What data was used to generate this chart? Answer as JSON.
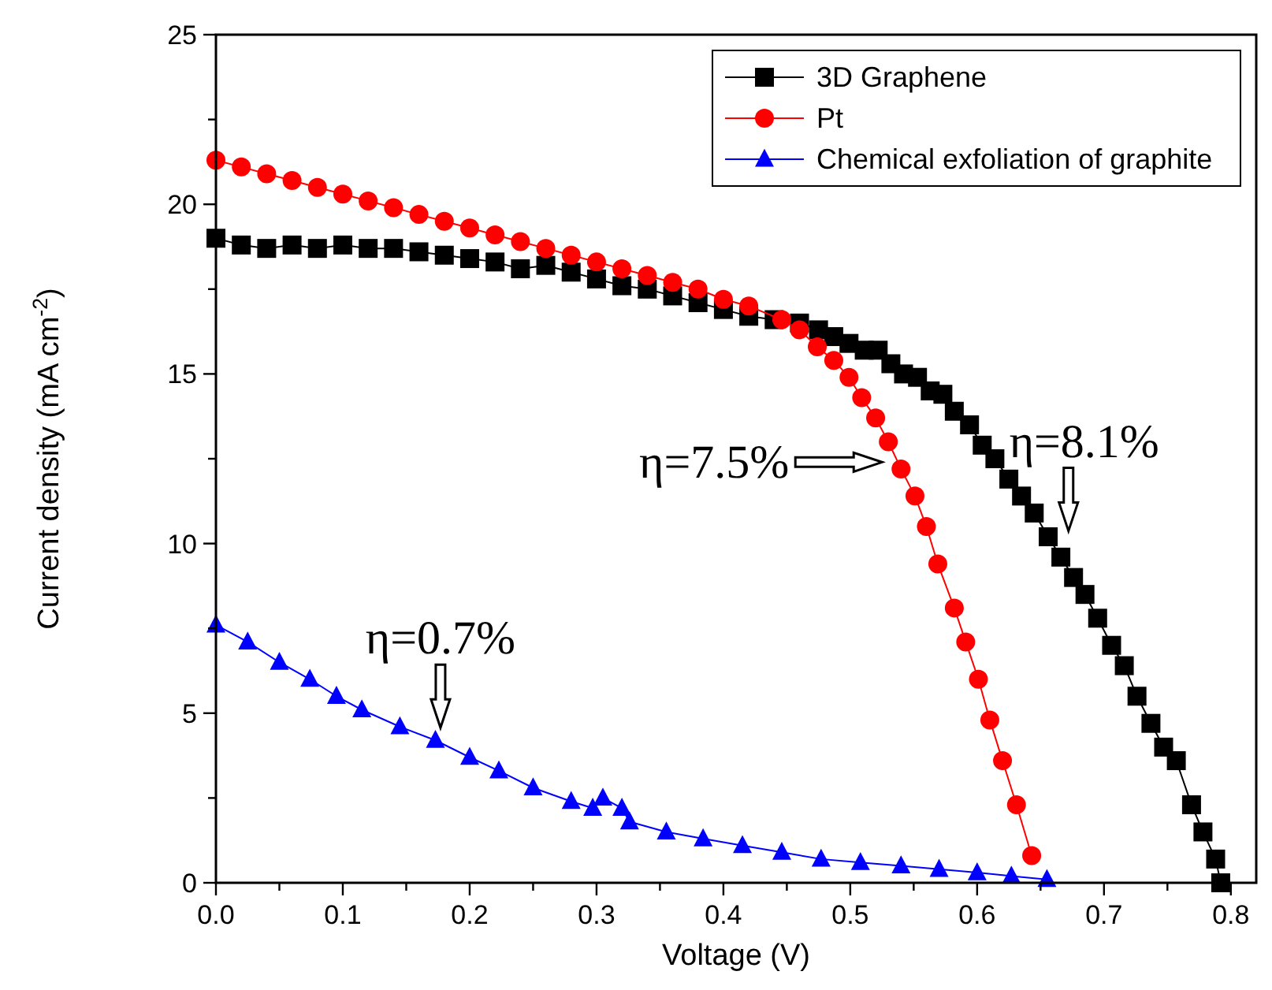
{
  "chart_data": {
    "type": "line",
    "xlabel": "Voltage (V)",
    "ylabel": "Current density (mA cm$^{-2}$)",
    "xlim": [
      0,
      0.82
    ],
    "ylim": [
      0,
      25
    ],
    "xticks": [
      {
        "value": 0,
        "label": "0.0"
      },
      {
        "value": 0.05,
        "label": null
      },
      {
        "value": 0.1,
        "label": "0.1"
      },
      {
        "value": 0.15,
        "label": null
      },
      {
        "value": 0.2,
        "label": "0.2"
      },
      {
        "value": 0.25,
        "label": null
      },
      {
        "value": 0.3,
        "label": "0.3"
      },
      {
        "value": 0.35,
        "label": null
      },
      {
        "value": 0.4,
        "label": "0.4"
      },
      {
        "value": 0.45,
        "label": null
      },
      {
        "value": 0.5,
        "label": "0.5"
      },
      {
        "value": 0.55,
        "label": null
      },
      {
        "value": 0.6,
        "label": "0.6"
      },
      {
        "value": 0.65,
        "label": null
      },
      {
        "value": 0.7,
        "label": "0.7"
      },
      {
        "value": 0.75,
        "label": null
      },
      {
        "value": 0.8,
        "label": "0.8"
      }
    ],
    "yticks": [
      0,
      {
        "value": 2.5,
        "label": null
      },
      5,
      {
        "value": 7.5,
        "label": null
      },
      10,
      {
        "value": 12.5,
        "label": null
      },
      15,
      {
        "value": 17.5,
        "label": null
      },
      20,
      {
        "value": 22.5,
        "label": null
      },
      25
    ],
    "legend": "top right",
    "grid": false,
    "series": [
      {
        "name": "3D Graphene",
        "color": "#000000",
        "marker": "square",
        "x": [
          0,
          0.02,
          0.04,
          0.06,
          0.08,
          0.1,
          0.12,
          0.14,
          0.16,
          0.18,
          0.2,
          0.22,
          0.24,
          0.26,
          0.28,
          0.3,
          0.32,
          0.34,
          0.36,
          0.38,
          0.4,
          0.42,
          0.44,
          0.46,
          0.475,
          0.487,
          0.499,
          0.511,
          0.522,
          0.532,
          0.542,
          0.553,
          0.563,
          0.573,
          0.582,
          0.594,
          0.604,
          0.614,
          0.625,
          0.635,
          0.645,
          0.656,
          0.666,
          0.676,
          0.685,
          0.695,
          0.706,
          0.716,
          0.726,
          0.737,
          0.747,
          0.757,
          0.769,
          0.778,
          0.788,
          0.792
        ],
        "values": [
          19.0,
          18.8,
          18.7,
          18.8,
          18.7,
          18.8,
          18.7,
          18.7,
          18.6,
          18.5,
          18.4,
          18.3,
          18.1,
          18.2,
          18.0,
          17.8,
          17.6,
          17.5,
          17.3,
          17.1,
          16.9,
          16.7,
          16.6,
          16.5,
          16.3,
          16.1,
          15.9,
          15.7,
          15.7,
          15.3,
          15.0,
          14.9,
          14.5,
          14.4,
          13.9,
          13.5,
          12.9,
          12.5,
          11.9,
          11.4,
          10.9,
          10.2,
          9.6,
          9.0,
          8.5,
          7.8,
          7.0,
          6.4,
          5.5,
          4.7,
          4.0,
          3.6,
          2.3,
          1.5,
          0.7,
          0
        ]
      },
      {
        "name": "Pt",
        "color": "#ff0000",
        "marker": "circle",
        "x": [
          0,
          0.02,
          0.04,
          0.06,
          0.08,
          0.1,
          0.12,
          0.14,
          0.16,
          0.18,
          0.2,
          0.22,
          0.24,
          0.26,
          0.28,
          0.3,
          0.32,
          0.34,
          0.36,
          0.38,
          0.4,
          0.42,
          0.446,
          0.46,
          0.474,
          0.487,
          0.499,
          0.509,
          0.52,
          0.53,
          0.54,
          0.551,
          0.56,
          0.569,
          0.582,
          0.591,
          0.601,
          0.61,
          0.62,
          0.631,
          0.643
        ],
        "values": [
          21.3,
          21.1,
          20.9,
          20.7,
          20.5,
          20.3,
          20.1,
          19.9,
          19.7,
          19.5,
          19.3,
          19.1,
          18.9,
          18.7,
          18.5,
          18.3,
          18.1,
          17.9,
          17.7,
          17.5,
          17.2,
          17.0,
          16.6,
          16.3,
          15.8,
          15.4,
          14.9,
          14.3,
          13.7,
          13.0,
          12.2,
          11.4,
          10.5,
          9.4,
          8.1,
          7.1,
          6.0,
          4.8,
          3.6,
          2.3,
          0.8
        ]
      },
      {
        "name": "Chemical exfoliation of graphite",
        "color": "#0000ff",
        "marker": "triangle",
        "x": [
          0,
          0.025,
          0.05,
          0.074,
          0.095,
          0.115,
          0.145,
          0.173,
          0.2,
          0.223,
          0.25,
          0.28,
          0.297,
          0.305,
          0.32,
          0.326,
          0.355,
          0.384,
          0.415,
          0.446,
          0.477,
          0.508,
          0.54,
          0.57,
          0.6,
          0.627,
          0.655
        ],
        "values": [
          7.6,
          7.1,
          6.5,
          6.0,
          5.5,
          5.1,
          4.6,
          4.2,
          3.7,
          3.3,
          2.8,
          2.4,
          2.2,
          2.5,
          2.2,
          1.8,
          1.5,
          1.3,
          1.1,
          0.9,
          0.7,
          0.6,
          0.5,
          0.4,
          0.3,
          0.2,
          0.1
        ]
      }
    ],
    "annotations": [
      {
        "text": "η=8.1%",
        "x": 0.672,
        "y": 10.0
      },
      {
        "text": "η=7.5%",
        "x": 0.535,
        "y": 12.4
      },
      {
        "text": "η=0.7%",
        "x": 0.177,
        "y": 4.2
      }
    ]
  }
}
